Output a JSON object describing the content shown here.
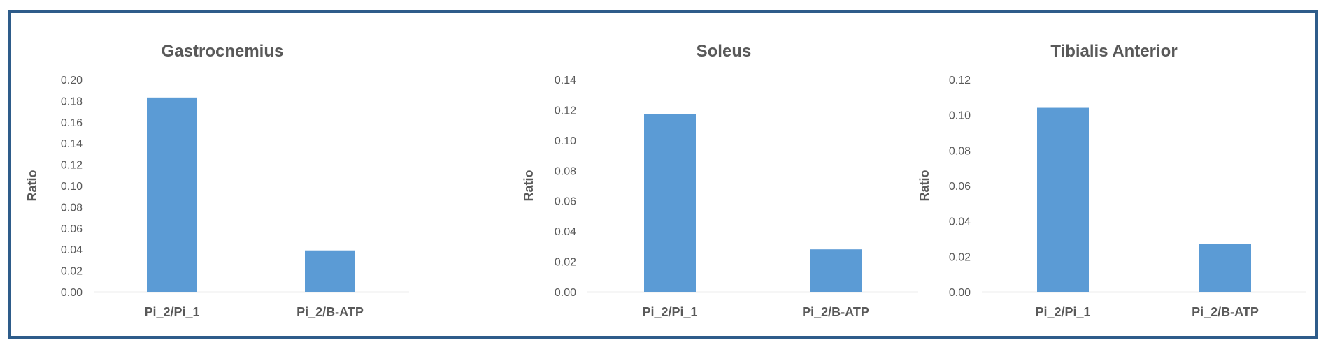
{
  "chart_data": [
    {
      "type": "bar",
      "title": "Gastrocnemius",
      "ylabel": "Ratio",
      "xlabel": "",
      "categories": [
        "Pi_2/Pi_1",
        "Pi_2/B-ATP"
      ],
      "values": [
        0.183,
        0.039
      ],
      "ylim": [
        0,
        0.2
      ],
      "yticks": [
        "0.00",
        "0.02",
        "0.04",
        "0.06",
        "0.08",
        "0.10",
        "0.12",
        "0.14",
        "0.16",
        "0.18",
        "0.20"
      ],
      "grid": false,
      "bar_color": "#5b9bd5"
    },
    {
      "type": "bar",
      "title": "Soleus",
      "ylabel": "Ratio",
      "xlabel": "",
      "categories": [
        "Pi_2/Pi_1",
        "Pi_2/B-ATP"
      ],
      "values": [
        0.117,
        0.028
      ],
      "ylim": [
        0,
        0.14
      ],
      "yticks": [
        "0.00",
        "0.02",
        "0.04",
        "0.06",
        "0.08",
        "0.10",
        "0.12",
        "0.14"
      ],
      "grid": false,
      "bar_color": "#5b9bd5"
    },
    {
      "type": "bar",
      "title": "Tibialis Anterior",
      "ylabel": "Ratio",
      "xlabel": "",
      "categories": [
        "Pi_2/Pi_1",
        "Pi_2/B-ATP"
      ],
      "values": [
        0.104,
        0.027
      ],
      "ylim": [
        0,
        0.12
      ],
      "yticks": [
        "0.00",
        "0.02",
        "0.04",
        "0.06",
        "0.08",
        "0.10",
        "0.12"
      ],
      "grid": false,
      "bar_color": "#5b9bd5"
    }
  ]
}
